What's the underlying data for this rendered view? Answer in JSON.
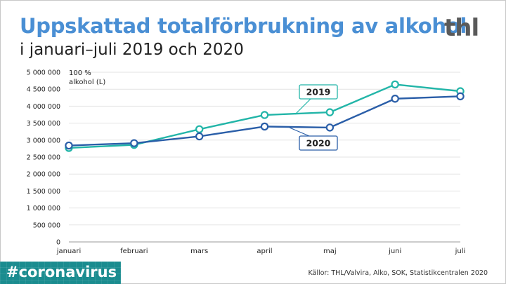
{
  "header": {
    "title": "Uppskattad totalförbrukning av alkohol",
    "subtitle": "i januari–juli 2019 och 2020",
    "logo": "thl"
  },
  "footer": {
    "hashtag": "#coronavirus",
    "source": "Källor: THL/Valvira, Alko, SOK, Statistikcentralen 2020"
  },
  "colors": {
    "title": "#4a8fd4",
    "series_2019": "#22b5a8",
    "series_2020": "#2a5ea8",
    "grid": "#e3e3e3",
    "tag_bg": "#1a8c8f"
  },
  "chart_data": {
    "type": "line",
    "title": "Uppskattad totalförbrukning av alkohol",
    "subtitle": "i januari–juli 2019 och 2020",
    "ylabel_line1": "100 %",
    "ylabel_line2": "alkohol (L)",
    "xlabel": "",
    "categories": [
      "januari",
      "februari",
      "mars",
      "april",
      "maj",
      "juni",
      "juli"
    ],
    "ylim": [
      0,
      5000000
    ],
    "yticks": [
      0,
      500000,
      1000000,
      1500000,
      2000000,
      2500000,
      3000000,
      3500000,
      4000000,
      4500000,
      5000000
    ],
    "ytick_labels": [
      "0",
      "500 000",
      "1 000 000",
      "1 500 000",
      "2 000 000",
      "2 500 000",
      "3 000 000",
      "3 500 000",
      "4 000 000",
      "4 500 000",
      "5 000 000"
    ],
    "grid": true,
    "series": [
      {
        "name": "2019",
        "values": [
          2770000,
          2860000,
          3320000,
          3740000,
          3820000,
          4640000,
          4440000
        ]
      },
      {
        "name": "2020",
        "values": [
          2840000,
          2910000,
          3110000,
          3400000,
          3370000,
          4220000,
          4290000
        ]
      }
    ]
  }
}
